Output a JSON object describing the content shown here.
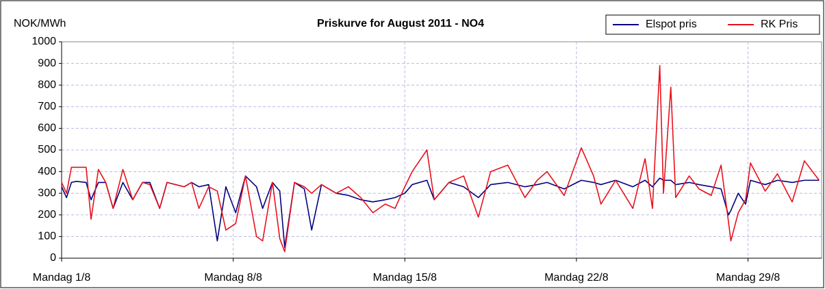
{
  "chart_data": {
    "type": "line",
    "title": "Priskurve for August  2011 - NO4",
    "ylabel": "NOK/MWh",
    "x": [
      0,
      0.2,
      0.4,
      0.6,
      1.0,
      1.2,
      1.5,
      1.8,
      2.1,
      2.5,
      2.9,
      3.3,
      3.6,
      4.0,
      4.3,
      5.0,
      5.3,
      5.6,
      6.0,
      6.35,
      6.7,
      7.1,
      7.5,
      7.95,
      8.2,
      8.6,
      8.9,
      9.1,
      9.5,
      9.9,
      10.2,
      10.6,
      11.2,
      11.7,
      12.2,
      12.7,
      13.2,
      13.6,
      14.0,
      14.3,
      14.9,
      15.2,
      15.8,
      16.4,
      17.0,
      17.5,
      18.2,
      18.9,
      19.4,
      19.8,
      20.5,
      21.2,
      21.7,
      22.0,
      22.6,
      23.3,
      23.8,
      24.1,
      24.4,
      24.55,
      24.85,
      25.05,
      25.6,
      26.0,
      26.5,
      26.9,
      27.2,
      27.3,
      27.6,
      27.9,
      28.1,
      28.7,
      29.2,
      29.8,
      30.3,
      30.9
    ],
    "series": [
      {
        "name": "Elspot pris",
        "color": "#000080",
        "values": [
          330,
          280,
          350,
          355,
          350,
          270,
          350,
          350,
          230,
          350,
          270,
          350,
          350,
          230,
          350,
          330,
          350,
          330,
          340,
          80,
          330,
          210,
          380,
          330,
          230,
          350,
          310,
          50,
          350,
          320,
          130,
          340,
          300,
          290,
          270,
          260,
          270,
          280,
          300,
          340,
          360,
          270,
          350,
          330,
          280,
          340,
          350,
          330,
          340,
          350,
          320,
          360,
          350,
          340,
          360,
          330,
          360,
          330,
          370,
          360,
          360,
          340,
          350,
          340,
          330,
          320,
          200,
          220,
          300,
          250,
          360,
          340,
          360,
          350,
          360,
          360
        ]
      },
      {
        "name": "RK Pris",
        "color": "#e8101a",
        "values": [
          350,
          300,
          420,
          420,
          420,
          180,
          410,
          350,
          230,
          410,
          270,
          350,
          340,
          230,
          350,
          330,
          350,
          230,
          330,
          310,
          130,
          160,
          380,
          100,
          80,
          350,
          90,
          30,
          350,
          330,
          300,
          340,
          300,
          330,
          280,
          210,
          250,
          230,
          330,
          400,
          500,
          270,
          350,
          380,
          190,
          400,
          430,
          280,
          360,
          400,
          290,
          510,
          380,
          250,
          360,
          230,
          460,
          230,
          890,
          300,
          790,
          280,
          380,
          320,
          290,
          430,
          170,
          80,
          210,
          270,
          440,
          310,
          390,
          260,
          450,
          360
        ]
      }
    ],
    "xlim": [
      0,
      31
    ],
    "xticks": [
      {
        "value": 0,
        "label": "Mandag 1/8"
      },
      {
        "value": 7,
        "label": "Mandag 8/8"
      },
      {
        "value": 14,
        "label": "Mandag 15/8"
      },
      {
        "value": 21,
        "label": "Mandag 22/8"
      },
      {
        "value": 28,
        "label": "Mandag 29/8"
      }
    ],
    "ylim": [
      0,
      1000
    ],
    "yticks": [
      0,
      100,
      200,
      300,
      400,
      500,
      600,
      700,
      800,
      900,
      1000
    ],
    "grid": true,
    "legend": "top-right"
  }
}
